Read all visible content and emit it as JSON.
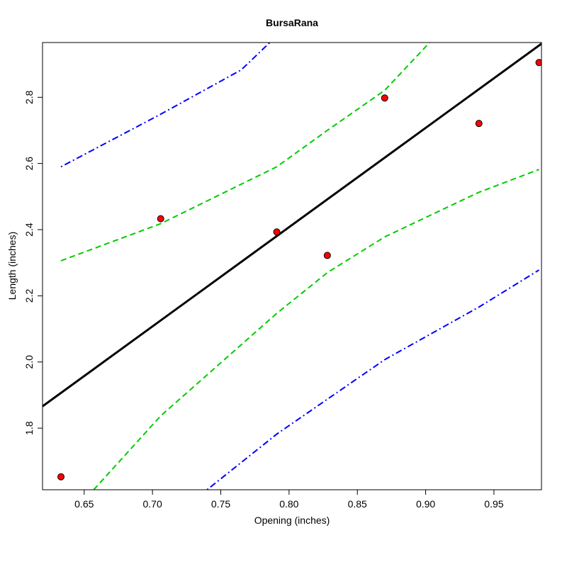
{
  "chart_data": {
    "type": "scatter",
    "title": "BursaRana",
    "xlabel": "Opening (inches)",
    "ylabel": "Length (inches)",
    "xlim": [
      0.6195,
      0.9848
    ],
    "ylim": [
      1.6138,
      2.9656
    ],
    "x_ticks": [
      "0.65",
      "0.70",
      "0.75",
      "0.80",
      "0.85",
      "0.90",
      "0.95"
    ],
    "y_ticks": [
      "1.8",
      "2.0",
      "2.2",
      "2.4",
      "2.6",
      "2.8"
    ],
    "grid": false,
    "points": {
      "x": [
        0.633,
        0.706,
        0.791,
        0.828,
        0.87,
        0.939,
        0.983
      ],
      "y": [
        1.653,
        2.433,
        2.393,
        2.322,
        2.798,
        2.721,
        2.905
      ],
      "color": "#ff0000"
    },
    "fit_line": {
      "color": "#000000",
      "style": "solid",
      "x": [
        0.6195,
        0.9848
      ],
      "y": [
        1.866,
        2.962
      ]
    },
    "confidence_band": {
      "color": "#00cc00",
      "style": "dashed",
      "upper": {
        "x": [
          0.633,
          0.706,
          0.791,
          0.828,
          0.87,
          0.903
        ],
        "y": [
          2.306,
          2.418,
          2.59,
          2.7,
          2.821,
          2.966
        ]
      },
      "lower": {
        "x": [
          0.657,
          0.706,
          0.791,
          0.828,
          0.87,
          0.939,
          0.983
        ],
        "y": [
          1.614,
          1.837,
          2.147,
          2.27,
          2.378,
          2.513,
          2.582
        ]
      }
    },
    "prediction_band": {
      "color": "#0000ff",
      "style": "dotdash",
      "upper": {
        "x": [
          0.633,
          0.706,
          0.765,
          0.786
        ],
        "y": [
          2.59,
          2.749,
          2.883,
          2.966
        ]
      },
      "lower": {
        "x": [
          0.74,
          0.791,
          0.87,
          0.939,
          0.983
        ],
        "y": [
          1.614,
          1.782,
          2.007,
          2.166,
          2.278
        ]
      }
    }
  }
}
